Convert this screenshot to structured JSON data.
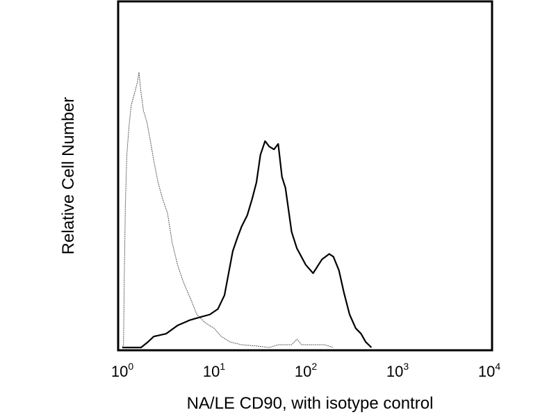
{
  "chart_data": {
    "type": "line",
    "title": "",
    "xlabel": "NA/LE CD90, with isotype control",
    "ylabel": "Relative Cell Number",
    "x_scale": "log",
    "xlim": [
      1,
      10000
    ],
    "ylim": [
      0,
      100
    ],
    "grid": false,
    "legend": "none",
    "x_ticks": [
      {
        "base": "10",
        "exp": "0",
        "value": 1
      },
      {
        "base": "10",
        "exp": "1",
        "value": 10
      },
      {
        "base": "10",
        "exp": "2",
        "value": 100
      },
      {
        "base": "10",
        "exp": "3",
        "value": 1000
      },
      {
        "base": "10",
        "exp": "4",
        "value": 10000
      }
    ],
    "series": [
      {
        "style": "thin-gray",
        "color": "#555555",
        "points": [
          [
            1.0,
            0
          ],
          [
            1.03,
            1
          ],
          [
            1.05,
            25
          ],
          [
            1.08,
            52
          ],
          [
            1.12,
            70
          ],
          [
            1.18,
            80
          ],
          [
            1.25,
            88
          ],
          [
            1.35,
            92
          ],
          [
            1.45,
            96
          ],
          [
            1.52,
            100
          ],
          [
            1.58,
            94
          ],
          [
            1.7,
            86
          ],
          [
            1.85,
            82
          ],
          [
            2.0,
            76
          ],
          [
            2.2,
            68
          ],
          [
            2.45,
            60
          ],
          [
            2.75,
            54
          ],
          [
            3.1,
            49
          ],
          [
            3.5,
            38
          ],
          [
            4.0,
            30
          ],
          [
            4.6,
            24
          ],
          [
            5.5,
            18
          ],
          [
            6.5,
            12
          ],
          [
            8.0,
            9
          ],
          [
            10.0,
            7
          ],
          [
            12.0,
            4
          ],
          [
            15.0,
            2
          ],
          [
            20.0,
            1
          ],
          [
            30.0,
            0.5
          ],
          [
            40.0,
            0
          ],
          [
            50.0,
            1
          ],
          [
            70.0,
            1
          ],
          [
            80.0,
            3
          ],
          [
            90.0,
            1
          ],
          [
            120.0,
            1
          ],
          [
            160.0,
            1
          ],
          [
            200.0,
            0
          ]
        ]
      },
      {
        "style": "thick-black",
        "color": "#000000",
        "points": [
          [
            1.0,
            0
          ],
          [
            1.6,
            0
          ],
          [
            1.9,
            2
          ],
          [
            2.2,
            4
          ],
          [
            3.0,
            5
          ],
          [
            4.0,
            8
          ],
          [
            5.5,
            10
          ],
          [
            7.0,
            11
          ],
          [
            9.0,
            12
          ],
          [
            11.0,
            14
          ],
          [
            13.0,
            19
          ],
          [
            16.0,
            35
          ],
          [
            18.0,
            40
          ],
          [
            20.0,
            44
          ],
          [
            23.0,
            48
          ],
          [
            26.0,
            54
          ],
          [
            29.0,
            60
          ],
          [
            32.0,
            70
          ],
          [
            36.0,
            75
          ],
          [
            40.0,
            73
          ],
          [
            45.0,
            72
          ],
          [
            50.0,
            74
          ],
          [
            55.0,
            62
          ],
          [
            60.0,
            58
          ],
          [
            70.0,
            42
          ],
          [
            80.0,
            36
          ],
          [
            100.0,
            30
          ],
          [
            120.0,
            27
          ],
          [
            150.0,
            32
          ],
          [
            180.0,
            34
          ],
          [
            200.0,
            33
          ],
          [
            230.0,
            28
          ],
          [
            260.0,
            20
          ],
          [
            300.0,
            12
          ],
          [
            350.0,
            7
          ],
          [
            400.0,
            5
          ],
          [
            450.0,
            2
          ],
          [
            520.0,
            0
          ]
        ]
      }
    ]
  }
}
